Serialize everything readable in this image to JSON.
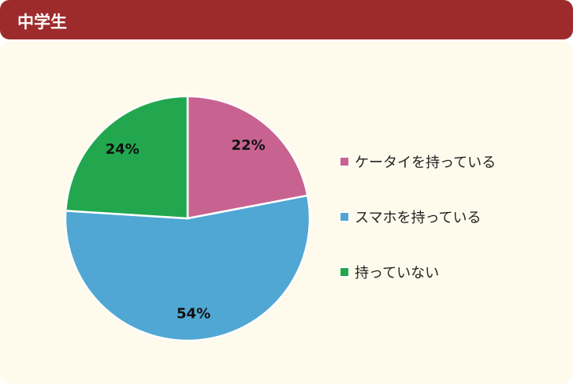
{
  "header": {
    "title": "中学生"
  },
  "chart_data": {
    "type": "pie",
    "title": "中学生",
    "start": "top",
    "direction": "clockwise",
    "legend_placement": "right",
    "slices": [
      {
        "label": "ケータイを持っている",
        "value": 22,
        "value_label": "22%",
        "color": "#c86391"
      },
      {
        "label": "スマホを持っている",
        "value": 54,
        "value_label": "54%",
        "color": "#50a7d3"
      },
      {
        "label": "持っていない",
        "value": 24,
        "value_label": "24%",
        "color": "#22a74f"
      }
    ]
  }
}
